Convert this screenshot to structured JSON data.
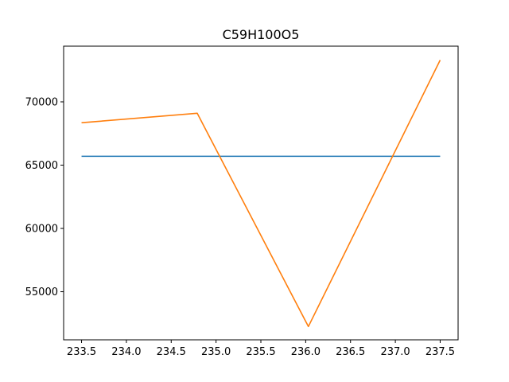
{
  "chart_data": {
    "type": "line",
    "title": "C59H100O5",
    "xlabel": "",
    "ylabel": "",
    "xlim": [
      233.3,
      237.7
    ],
    "ylim": [
      51200,
      74400
    ],
    "xticks": [
      233.5,
      234.0,
      234.5,
      235.0,
      235.5,
      236.0,
      236.5,
      237.0,
      237.5
    ],
    "xtick_labels": [
      "233.5",
      "234.0",
      "234.5",
      "235.0",
      "235.5",
      "236.0",
      "236.5",
      "237.0",
      "237.5"
    ],
    "yticks": [
      55000,
      60000,
      65000,
      70000
    ],
    "ytick_labels": [
      "55000",
      "60000",
      "65000",
      "70000"
    ],
    "grid": false,
    "series": [
      {
        "color": "#1f77b4",
        "x": [
          233.5,
          237.5
        ],
        "y": [
          65700,
          65700
        ]
      },
      {
        "color": "#ff7f0e",
        "x": [
          233.5,
          234.79,
          236.03,
          237.5
        ],
        "y": [
          68350,
          69100,
          52250,
          73300
        ]
      }
    ]
  }
}
